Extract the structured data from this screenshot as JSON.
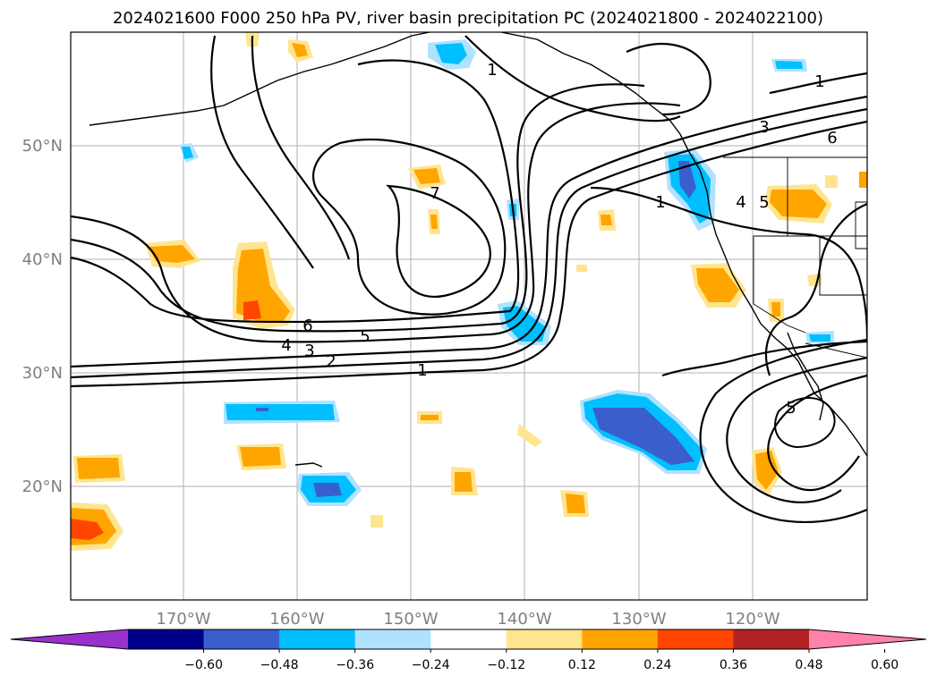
{
  "title": "2024021600 F000 250 hPa PV, river basin precipitation PC (2024021800 - 2024022100)",
  "lat_labels": [
    "50°N",
    "40°N",
    "30°N",
    "20°N"
  ],
  "lon_labels": [
    "170°W",
    "160°W",
    "150°W",
    "140°W",
    "130°W",
    "120°W"
  ],
  "colorbar": {
    "ticks": [
      "−0.60",
      "−0.48",
      "−0.36",
      "−0.24",
      "−0.12",
      "0.12",
      "0.24",
      "0.36",
      "0.48",
      "0.60"
    ],
    "colors": [
      "#9932cc",
      "#00008b",
      "#3a5fcd",
      "#00bfff",
      "#b0e2ff",
      "#ffffff",
      "#ffe58f",
      "#ffa500",
      "#ff4500",
      "#b22222",
      "#ff82ab"
    ]
  },
  "pv_contour_labels": [
    "1",
    "1",
    "1",
    "1",
    "2",
    "3",
    "3",
    "4",
    "4",
    "5",
    "5",
    "5",
    "6",
    "6",
    "7"
  ]
}
